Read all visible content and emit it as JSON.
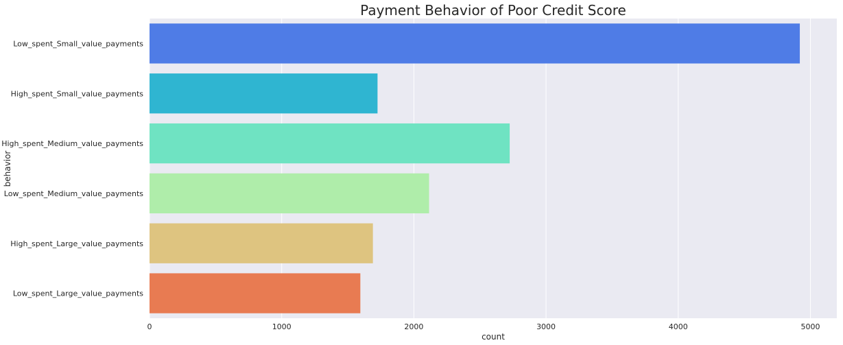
{
  "chart_data": {
    "type": "bar",
    "orientation": "horizontal",
    "title": "Payment Behavior of Poor Credit Score",
    "xlabel": "count",
    "ylabel": "behavior",
    "xlim": [
      0,
      5200
    ],
    "xticks": [
      0,
      1000,
      2000,
      3000,
      4000,
      5000
    ],
    "grid": true,
    "categories": [
      "Low_spent_Small_value_payments",
      "High_spent_Small_value_payments",
      "High_spent_Medium_value_payments",
      "Low_spent_Medium_value_payments",
      "High_spent_Large_value_payments",
      "Low_spent_Large_value_payments"
    ],
    "values": [
      4920,
      1725,
      2725,
      2115,
      1690,
      1595
    ],
    "colors": [
      "#4f7ce6",
      "#2fb5d1",
      "#6fe3c2",
      "#afedaa",
      "#dec480",
      "#e87b52"
    ]
  }
}
